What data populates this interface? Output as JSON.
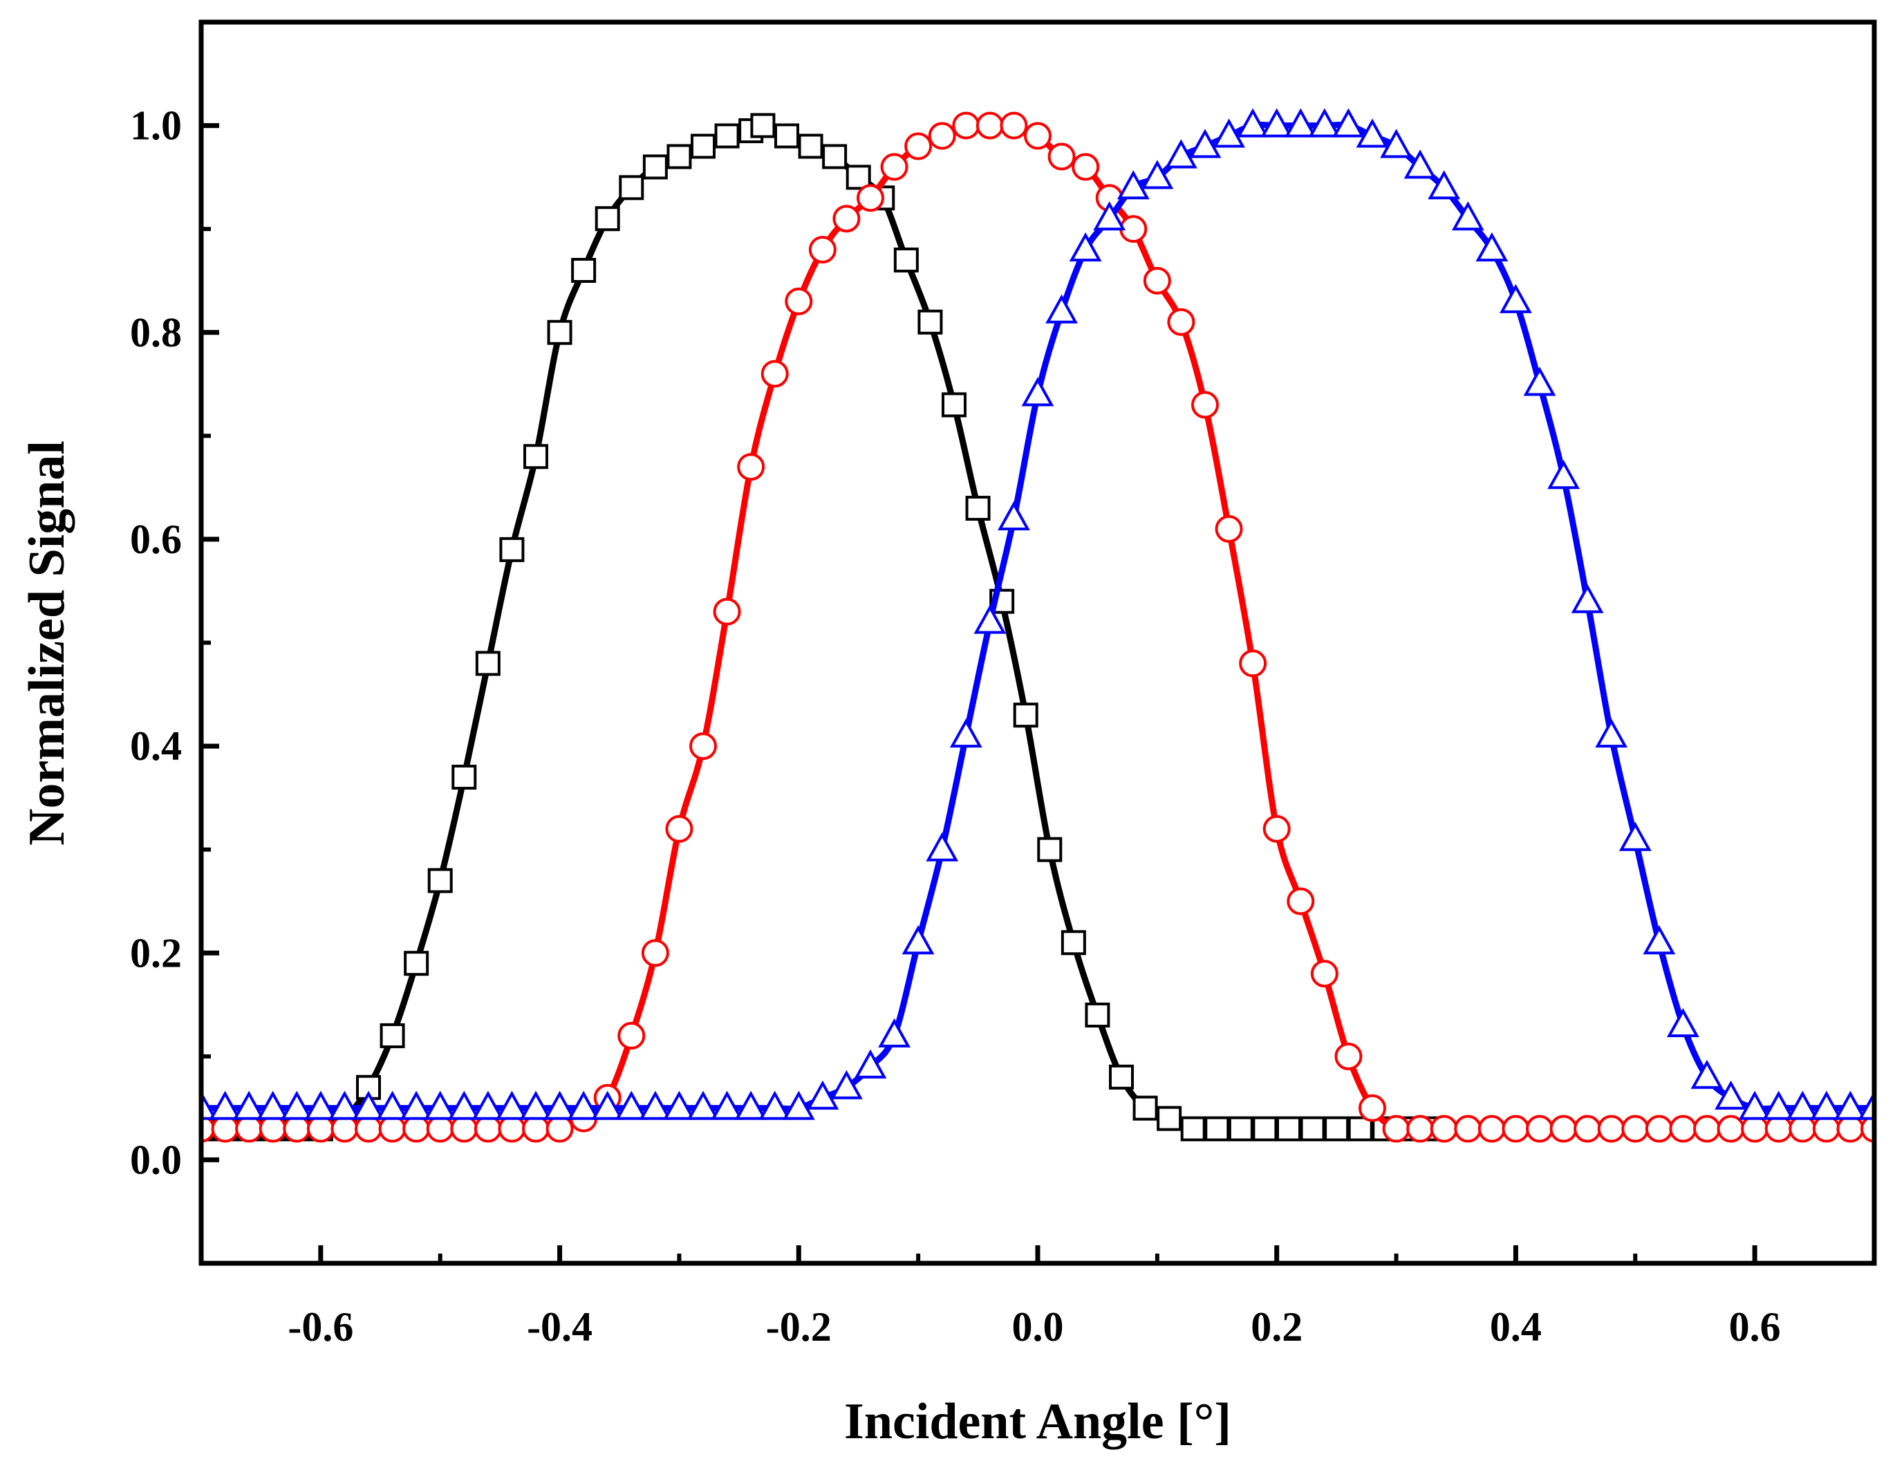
{
  "chart_data": {
    "type": "line",
    "title": "",
    "xlabel": "Incident Angle [°]",
    "ylabel": "Normalized Signal",
    "xlim": [
      -0.7,
      0.7
    ],
    "ylim": [
      -0.1,
      1.1
    ],
    "x_ticks": [
      -0.6,
      -0.4,
      -0.2,
      0.0,
      0.2,
      0.4,
      0.6
    ],
    "x_tick_labels": [
      "-0.6",
      "-0.4",
      "-0.2",
      "0.0",
      "0.2",
      "0.4",
      "0.6"
    ],
    "y_ticks": [
      0.0,
      0.2,
      0.4,
      0.6,
      0.8,
      1.0
    ],
    "y_tick_labels": [
      "0.0",
      "0.2",
      "0.4",
      "0.6",
      "0.8",
      "1.0"
    ],
    "grid": false,
    "legend": "none",
    "series": [
      {
        "color": "#000000",
        "marker": "square",
        "x": [
          -0.7,
          -0.68,
          -0.66,
          -0.64,
          -0.62,
          -0.6,
          -0.58,
          -0.56,
          -0.54,
          -0.52,
          -0.5,
          -0.48,
          -0.46,
          -0.44,
          -0.42,
          -0.4,
          -0.38,
          -0.36,
          -0.34,
          -0.32,
          -0.3,
          -0.28,
          -0.26,
          -0.24,
          -0.23,
          -0.21,
          -0.19,
          -0.17,
          -0.15,
          -0.13,
          -0.11,
          -0.09,
          -0.07,
          -0.05,
          -0.03,
          -0.01,
          0.01,
          0.03,
          0.05,
          0.07,
          0.09,
          0.11,
          0.13,
          0.15,
          0.17,
          0.19,
          0.21,
          0.23,
          0.25,
          0.27,
          0.29,
          0.31,
          0.33
        ],
        "y": [
          0.03,
          0.03,
          0.03,
          0.03,
          0.03,
          0.03,
          0.04,
          0.07,
          0.12,
          0.19,
          0.27,
          0.37,
          0.48,
          0.59,
          0.68,
          0.8,
          0.86,
          0.91,
          0.94,
          0.96,
          0.97,
          0.98,
          0.99,
          0.995,
          1.0,
          0.99,
          0.98,
          0.97,
          0.95,
          0.93,
          0.87,
          0.81,
          0.73,
          0.63,
          0.54,
          0.43,
          0.3,
          0.21,
          0.14,
          0.08,
          0.05,
          0.04,
          0.03,
          0.03,
          0.03,
          0.03,
          0.03,
          0.03,
          0.03,
          0.03,
          0.03,
          0.03,
          0.03
        ]
      },
      {
        "color": "#ff0000",
        "marker": "circle",
        "x": [
          -0.7,
          -0.68,
          -0.66,
          -0.64,
          -0.62,
          -0.6,
          -0.58,
          -0.56,
          -0.54,
          -0.52,
          -0.5,
          -0.48,
          -0.46,
          -0.44,
          -0.42,
          -0.4,
          -0.38,
          -0.36,
          -0.34,
          -0.32,
          -0.3,
          -0.28,
          -0.26,
          -0.24,
          -0.22,
          -0.2,
          -0.18,
          -0.16,
          -0.14,
          -0.12,
          -0.1,
          -0.08,
          -0.06,
          -0.04,
          -0.02,
          0.0,
          0.02,
          0.04,
          0.06,
          0.08,
          0.1,
          0.12,
          0.14,
          0.16,
          0.18,
          0.2,
          0.22,
          0.24,
          0.26,
          0.28,
          0.3,
          0.32,
          0.34,
          0.36,
          0.38,
          0.4,
          0.42,
          0.44,
          0.46,
          0.48,
          0.5,
          0.52,
          0.54,
          0.56,
          0.58,
          0.6,
          0.62,
          0.64,
          0.66,
          0.68,
          0.7
        ],
        "y": [
          0.03,
          0.03,
          0.03,
          0.03,
          0.03,
          0.03,
          0.03,
          0.03,
          0.03,
          0.03,
          0.03,
          0.03,
          0.03,
          0.03,
          0.03,
          0.03,
          0.04,
          0.06,
          0.12,
          0.2,
          0.32,
          0.4,
          0.53,
          0.67,
          0.76,
          0.83,
          0.88,
          0.91,
          0.93,
          0.96,
          0.98,
          0.99,
          1.0,
          1.0,
          1.0,
          0.99,
          0.97,
          0.96,
          0.93,
          0.9,
          0.85,
          0.81,
          0.73,
          0.61,
          0.48,
          0.32,
          0.25,
          0.18,
          0.1,
          0.05,
          0.03,
          0.03,
          0.03,
          0.03,
          0.03,
          0.03,
          0.03,
          0.03,
          0.03,
          0.03,
          0.03,
          0.03,
          0.03,
          0.03,
          0.03,
          0.03,
          0.03,
          0.03,
          0.03,
          0.03,
          0.03
        ]
      },
      {
        "color": "#0000ff",
        "marker": "triangle",
        "x": [
          -0.7,
          -0.68,
          -0.66,
          -0.64,
          -0.62,
          -0.6,
          -0.58,
          -0.56,
          -0.54,
          -0.52,
          -0.5,
          -0.48,
          -0.46,
          -0.44,
          -0.42,
          -0.4,
          -0.38,
          -0.36,
          -0.34,
          -0.32,
          -0.3,
          -0.28,
          -0.26,
          -0.24,
          -0.22,
          -0.2,
          -0.18,
          -0.16,
          -0.14,
          -0.12,
          -0.1,
          -0.08,
          -0.06,
          -0.04,
          -0.02,
          0.0,
          0.02,
          0.04,
          0.06,
          0.08,
          0.1,
          0.12,
          0.14,
          0.16,
          0.18,
          0.2,
          0.22,
          0.24,
          0.26,
          0.28,
          0.3,
          0.32,
          0.34,
          0.36,
          0.38,
          0.4,
          0.42,
          0.44,
          0.46,
          0.48,
          0.5,
          0.52,
          0.54,
          0.56,
          0.58,
          0.6,
          0.62,
          0.64,
          0.66,
          0.68,
          0.7
        ],
        "y": [
          0.05,
          0.05,
          0.05,
          0.05,
          0.05,
          0.05,
          0.05,
          0.05,
          0.05,
          0.05,
          0.05,
          0.05,
          0.05,
          0.05,
          0.05,
          0.05,
          0.05,
          0.05,
          0.05,
          0.05,
          0.05,
          0.05,
          0.05,
          0.05,
          0.05,
          0.05,
          0.06,
          0.07,
          0.09,
          0.12,
          0.21,
          0.3,
          0.41,
          0.52,
          0.62,
          0.74,
          0.82,
          0.88,
          0.91,
          0.94,
          0.95,
          0.97,
          0.98,
          0.99,
          1.0,
          1.0,
          1.0,
          1.0,
          1.0,
          0.99,
          0.98,
          0.96,
          0.94,
          0.91,
          0.88,
          0.83,
          0.75,
          0.66,
          0.54,
          0.41,
          0.31,
          0.21,
          0.13,
          0.08,
          0.06,
          0.05,
          0.05,
          0.05,
          0.05,
          0.05,
          0.05
        ]
      }
    ]
  }
}
